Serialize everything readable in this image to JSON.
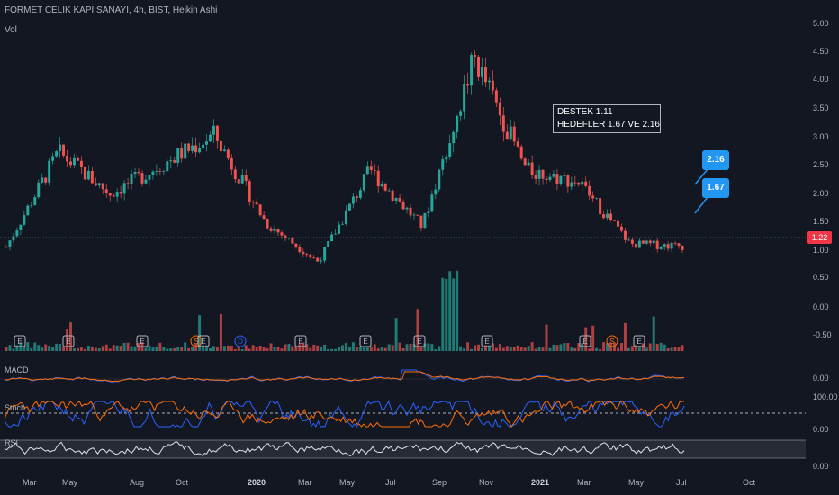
{
  "header": {
    "title": "FORMET CELIK KAPI SANAYI, 4h, BIST, Heikin Ashi",
    "volume_label": "Vol"
  },
  "annotation": {
    "line1": "DESTEK 1.11",
    "line2": "HEDEFLER 1.67 VE 2.16"
  },
  "callouts": {
    "upper": "2.16",
    "lower": "1.67"
  },
  "last_price": "1.22",
  "price_axis": [
    "5.00",
    "4.50",
    "4.00",
    "3.50",
    "3.00",
    "2.50",
    "2.00",
    "1.50",
    "1.00"
  ],
  "volume_axis": [
    "0.50",
    "0.00",
    "-0.50"
  ],
  "macd": {
    "label": "MACD",
    "axis": "0.00"
  },
  "stoch": {
    "label": "Stoch",
    "axis_top": "100.00",
    "axis_bottom": "0.00"
  },
  "rsi": {
    "label": "RSI",
    "axis": "0.00"
  },
  "x_axis": [
    {
      "label": "Mar",
      "bold": false
    },
    {
      "label": "May",
      "bold": false
    },
    {
      "label": "Aug",
      "bold": false
    },
    {
      "label": "Oct",
      "bold": false
    },
    {
      "label": "2020",
      "bold": true
    },
    {
      "label": "Mar",
      "bold": false
    },
    {
      "label": "May",
      "bold": false
    },
    {
      "label": "Jul",
      "bold": false
    },
    {
      "label": "Sep",
      "bold": false
    },
    {
      "label": "Nov",
      "bold": false
    },
    {
      "label": "2021",
      "bold": true
    },
    {
      "label": "Mar",
      "bold": false
    },
    {
      "label": "May",
      "bold": false
    },
    {
      "label": "Jul",
      "bold": false
    },
    {
      "label": "Oct",
      "bold": false
    }
  ],
  "event_markers": [
    "E",
    "E",
    "E",
    "S",
    "E",
    "D",
    "E",
    "E",
    "E",
    "E",
    "E",
    "S",
    "E"
  ],
  "colors": {
    "up": "#26a69a",
    "down": "#ef5350",
    "accent": "#2196f3",
    "macd": "#2962ff",
    "signal": "#ff6d00"
  },
  "chart_data": {
    "type": "line",
    "title": "FORMET CELIK KAPI SANAYI, 4h, BIST, Heikin Ashi",
    "xlabel": "",
    "ylabel": "",
    "ylim": [
      0.75,
      5.0
    ],
    "x": [
      "Mar",
      "May",
      "Aug",
      "Oct",
      "2020",
      "Mar",
      "May",
      "Jul",
      "Sep",
      "Nov",
      "2021",
      "Mar",
      "May",
      "Jul"
    ],
    "series": [
      {
        "values": [
          1.2,
          2.8,
          2.1,
          2.6,
          3.1,
          1.6,
          0.95,
          2.5,
          1.55,
          4.4,
          2.5,
          2.3,
          1.25,
          1.22
        ]
      }
    ],
    "reference_lines": {
      "last_price": 1.22,
      "support": 1.11,
      "targets": [
        1.67,
        2.16
      ]
    },
    "grid": false
  }
}
